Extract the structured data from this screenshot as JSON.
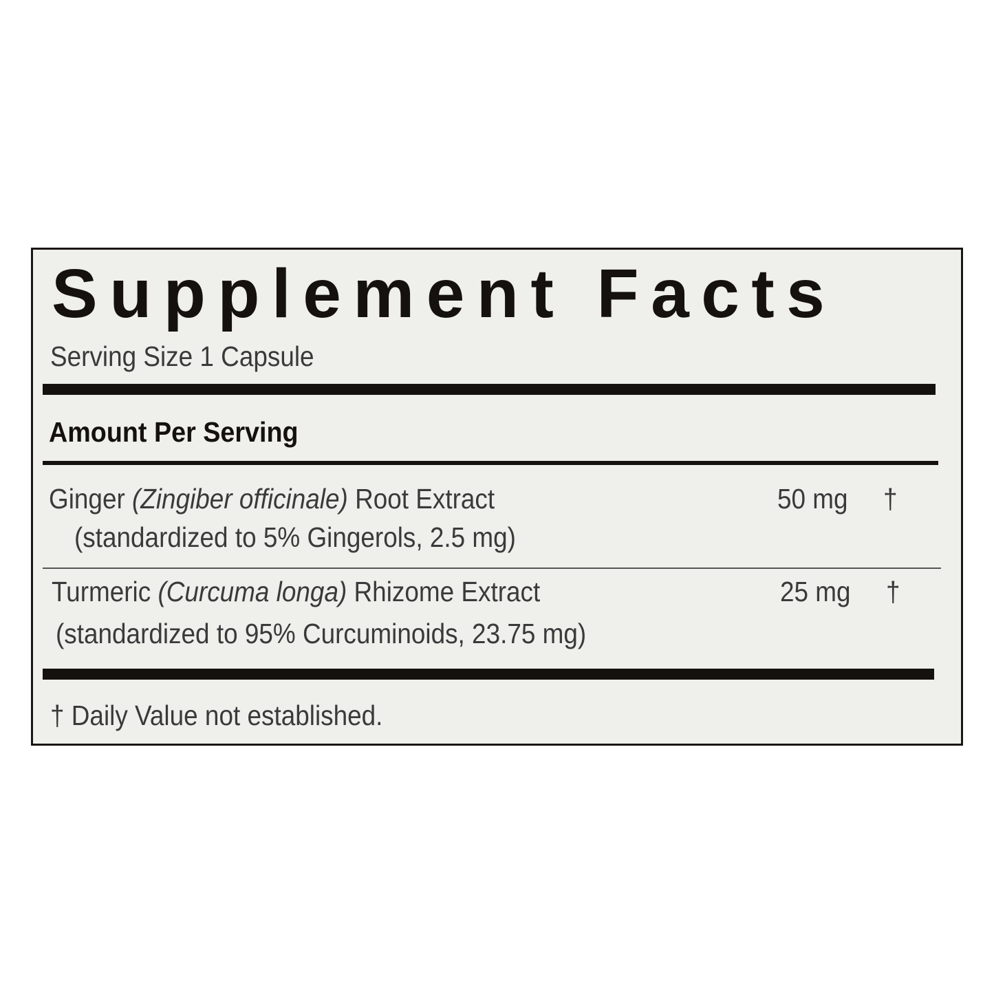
{
  "label": {
    "title": "Supplement Facts",
    "serving_size": "Serving Size 1 Capsule",
    "amount_header": "Amount Per Serving",
    "ingredients": [
      {
        "name": "Ginger",
        "latin": "(Zingiber officinale)",
        "part": "Root Extract",
        "standardization": "(standardized to 5% Gingerols, 2.5 mg)",
        "amount": "50 mg",
        "dv": "†"
      },
      {
        "name": "Turmeric",
        "latin": "(Curcuma longa)",
        "part": "Rhizome Extract",
        "standardization": "(standardized to 95% Curcuminoids, 23.75 mg)",
        "amount": "25 mg",
        "dv": "†"
      }
    ],
    "footnote": "† Daily Value not established."
  }
}
